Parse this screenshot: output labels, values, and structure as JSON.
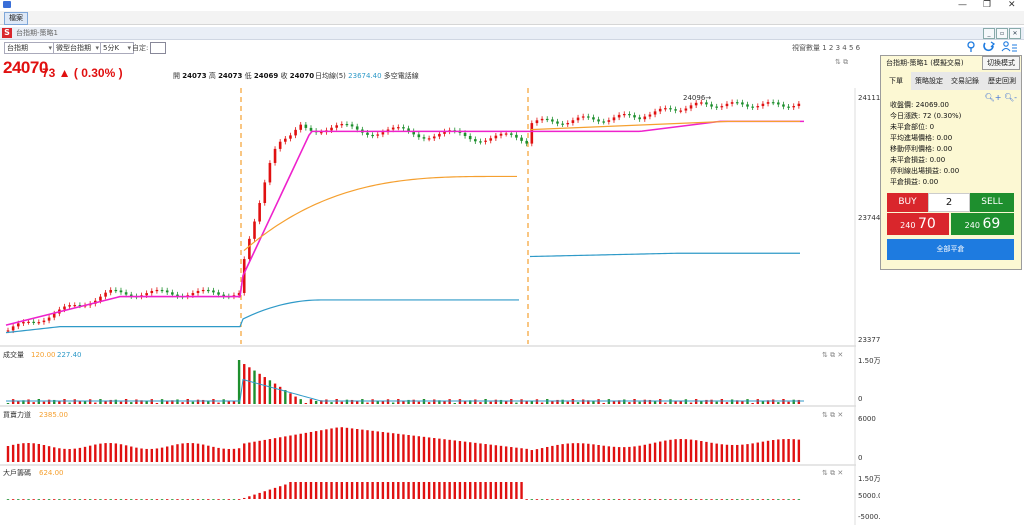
{
  "window": {
    "min": "—",
    "restore": "❐",
    "close": "✕"
  },
  "menu": {
    "tab_label": "檔案"
  },
  "doc": {
    "title": "台指期-策略1"
  },
  "toolbar": {
    "symbol": "台指期",
    "type": "微型台指期",
    "interval": "5分K",
    "custom_label": "自定:",
    "view_count": "視窗數量 1 2 3 4 5 6"
  },
  "quote": {
    "price": "24070",
    "change": "73 ▲ ( 0.30% )",
    "open_label": "開",
    "open": "24073",
    "high_label": "高",
    "high": "24073",
    "low_label": "低",
    "low": "24069",
    "close_label": "收",
    "close": "24070",
    "ma_label": "日均線(5)",
    "ma_value": "23674.40",
    "signal_label": "多空電話線"
  },
  "chart_data": [
    {
      "type": "candlestick",
      "title": "台指期 5分K",
      "ylim": [
        23377,
        24111
      ],
      "y_ticks": [
        "24111",
        "23744",
        "23377"
      ],
      "annotations": [
        "24096→"
      ],
      "series_colors": {
        "up": "#e01010",
        "down": "#1e8f2e",
        "ma_pink": "#ee22cc",
        "ma_orange": "#f5a030",
        "ma_teal": "#2f9ac8"
      }
    },
    {
      "type": "bar",
      "title": "成交量",
      "legend": [
        "120.00",
        "227.40"
      ],
      "y_ticks": [
        "1.50万",
        "0"
      ],
      "ylim": [
        0,
        15000
      ]
    },
    {
      "type": "bar",
      "title": "買賣力道",
      "legend": [
        "2385.00"
      ],
      "y_ticks": [
        "6000",
        "0"
      ],
      "ylim": [
        0,
        6000
      ]
    },
    {
      "type": "bar",
      "title": "大戶籌碼",
      "legend": [
        "624.00"
      ],
      "y_ticks": [
        "1.50万",
        "5000.0",
        "-5000."
      ],
      "ylim": [
        -5000,
        15000
      ]
    }
  ],
  "trade": {
    "title": "台指期-策略1 (模擬交易)",
    "switch_label": "切換模式",
    "tabs": [
      "下單",
      "策略設定",
      "交易記錄",
      "歷史回測"
    ],
    "lines": [
      "收盤價: 24069.00",
      "今日漲跌: 72 (0.30%)",
      "未平倉部位: 0",
      "平均進場價格: 0.00",
      "移動停利價格: 0.00",
      "未平倉損益: 0.00",
      "停利線出場損益: 0.00",
      "平倉損益: 0.00"
    ],
    "buy_label": "BUY",
    "qty": "2",
    "sell_label": "SELL",
    "bid_prefix": "240",
    "bid_big": "70",
    "ask_prefix": "240",
    "ask_big": "69",
    "close_all_label": "全部平倉"
  }
}
